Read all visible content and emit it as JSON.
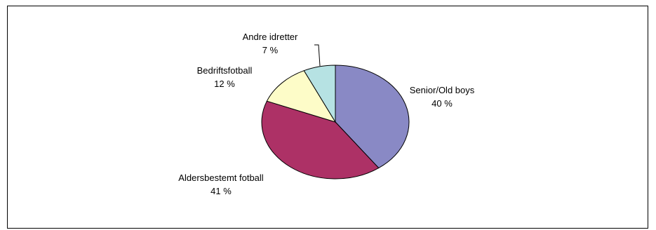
{
  "chart_data": {
    "type": "pie",
    "title": "",
    "slices": [
      {
        "label": "Senior/Old boys",
        "percent_label": "40 %",
        "value": 40,
        "color": "#8989c5"
      },
      {
        "label": "Aldersbestemt fotball",
        "percent_label": "41 %",
        "value": 41,
        "color": "#ad3166"
      },
      {
        "label": "Bedriftsfotball",
        "percent_label": "12 %",
        "value": 12,
        "color": "#fdfcc8"
      },
      {
        "label": "Andre idretter",
        "percent_label": "7 %",
        "value": 7,
        "color": "#b6e2e3"
      }
    ],
    "start_angle_deg": 0,
    "direction": "clockwise",
    "legend": "none"
  }
}
